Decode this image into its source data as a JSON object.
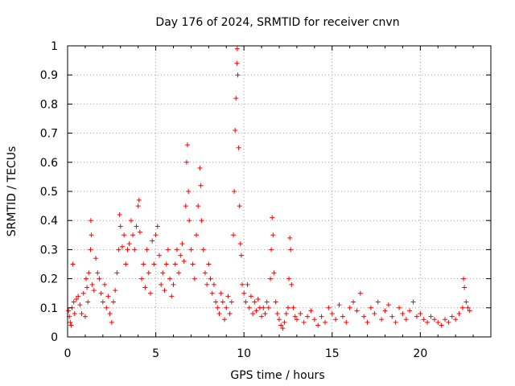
{
  "chart_data": {
    "type": "scatter",
    "title": "Day 176 of 2024, SRMTID for receiver cnvn",
    "xlabel": "GPS time / hours",
    "ylabel": "SRMTID / TECUs",
    "xlim": [
      0,
      24
    ],
    "ylim": [
      0,
      1
    ],
    "xticks": [
      0,
      5,
      10,
      15,
      20
    ],
    "xtick_labels": [
      "0",
      "5",
      "10",
      "15",
      "20"
    ],
    "yticks": [
      0,
      0.1,
      0.2,
      0.3,
      0.4,
      0.5,
      0.6,
      0.7,
      0.8,
      0.9,
      1
    ],
    "ytick_labels": [
      "0",
      "0.1",
      "0.2",
      "0.3",
      "0.4",
      "0.5",
      "0.6",
      "0.7",
      "0.8",
      "0.9",
      "1"
    ],
    "grid": true,
    "marker": "+",
    "series": [
      {
        "name": "SRMTID",
        "color": "#ff0000",
        "points": [
          [
            0.05,
            0.09
          ],
          [
            0.1,
            0.07
          ],
          [
            0.15,
            0.05
          ],
          [
            0.2,
            0.04
          ],
          [
            0.25,
            0.1
          ],
          [
            0.3,
            0.25
          ],
          [
            0.35,
            0.12
          ],
          [
            0.4,
            0.08
          ],
          [
            0.5,
            0.13
          ],
          [
            0.6,
            0.14
          ],
          [
            0.7,
            0.11
          ],
          [
            0.8,
            0.08
          ],
          [
            0.9,
            0.15
          ],
          [
            1.0,
            0.07
          ],
          [
            1.05,
            0.2
          ],
          [
            1.1,
            0.17
          ],
          [
            1.15,
            0.12
          ],
          [
            1.2,
            0.22
          ],
          [
            1.3,
            0.3
          ],
          [
            1.32,
            0.4
          ],
          [
            1.35,
            0.35
          ],
          [
            1.4,
            0.18
          ],
          [
            1.5,
            0.16
          ],
          [
            1.6,
            0.27
          ],
          [
            1.7,
            0.22
          ],
          [
            1.8,
            0.2
          ],
          [
            1.9,
            0.15
          ],
          [
            2.0,
            0.12
          ],
          [
            2.1,
            0.18
          ],
          [
            2.2,
            0.1
          ],
          [
            2.3,
            0.14
          ],
          [
            2.4,
            0.08
          ],
          [
            2.5,
            0.05
          ],
          [
            2.6,
            0.12
          ],
          [
            2.7,
            0.16
          ],
          [
            2.8,
            0.22
          ],
          [
            2.9,
            0.3
          ],
          [
            2.95,
            0.42
          ],
          [
            3.0,
            0.38
          ],
          [
            3.1,
            0.31
          ],
          [
            3.2,
            0.35
          ],
          [
            3.3,
            0.25
          ],
          [
            3.4,
            0.3
          ],
          [
            3.5,
            0.32
          ],
          [
            3.6,
            0.4
          ],
          [
            3.7,
            0.35
          ],
          [
            3.8,
            0.3
          ],
          [
            3.9,
            0.38
          ],
          [
            4.0,
            0.45
          ],
          [
            4.05,
            0.47
          ],
          [
            4.1,
            0.36
          ],
          [
            4.2,
            0.2
          ],
          [
            4.3,
            0.25
          ],
          [
            4.4,
            0.17
          ],
          [
            4.5,
            0.3
          ],
          [
            4.6,
            0.22
          ],
          [
            4.7,
            0.15
          ],
          [
            4.8,
            0.33
          ],
          [
            4.9,
            0.25
          ],
          [
            5.0,
            0.35
          ],
          [
            5.1,
            0.38
          ],
          [
            5.2,
            0.28
          ],
          [
            5.3,
            0.18
          ],
          [
            5.4,
            0.22
          ],
          [
            5.5,
            0.16
          ],
          [
            5.6,
            0.25
          ],
          [
            5.7,
            0.3
          ],
          [
            5.8,
            0.2
          ],
          [
            5.9,
            0.14
          ],
          [
            6.0,
            0.18
          ],
          [
            6.1,
            0.25
          ],
          [
            6.2,
            0.3
          ],
          [
            6.3,
            0.22
          ],
          [
            6.4,
            0.28
          ],
          [
            6.5,
            0.32
          ],
          [
            6.6,
            0.26
          ],
          [
            6.7,
            0.45
          ],
          [
            6.75,
            0.6
          ],
          [
            6.8,
            0.66
          ],
          [
            6.85,
            0.5
          ],
          [
            6.9,
            0.4
          ],
          [
            7.0,
            0.3
          ],
          [
            7.1,
            0.25
          ],
          [
            7.2,
            0.2
          ],
          [
            7.3,
            0.35
          ],
          [
            7.4,
            0.45
          ],
          [
            7.5,
            0.58
          ],
          [
            7.55,
            0.52
          ],
          [
            7.6,
            0.4
          ],
          [
            7.7,
            0.3
          ],
          [
            7.8,
            0.22
          ],
          [
            7.9,
            0.18
          ],
          [
            8.0,
            0.25
          ],
          [
            8.1,
            0.2
          ],
          [
            8.2,
            0.15
          ],
          [
            8.3,
            0.18
          ],
          [
            8.4,
            0.12
          ],
          [
            8.5,
            0.1
          ],
          [
            8.6,
            0.08
          ],
          [
            8.7,
            0.15
          ],
          [
            8.8,
            0.12
          ],
          [
            8.9,
            0.06
          ],
          [
            9.0,
            0.1
          ],
          [
            9.1,
            0.14
          ],
          [
            9.2,
            0.08
          ],
          [
            9.3,
            0.12
          ],
          [
            9.4,
            0.35
          ],
          [
            9.45,
            0.5
          ],
          [
            9.5,
            0.71
          ],
          [
            9.55,
            0.82
          ],
          [
            9.6,
            0.94
          ],
          [
            9.62,
            0.99
          ],
          [
            9.65,
            0.9
          ],
          [
            9.7,
            0.65
          ],
          [
            9.75,
            0.45
          ],
          [
            9.8,
            0.32
          ],
          [
            9.85,
            0.28
          ],
          [
            9.9,
            0.18
          ],
          [
            10.0,
            0.15
          ],
          [
            10.1,
            0.12
          ],
          [
            10.2,
            0.18
          ],
          [
            10.3,
            0.1
          ],
          [
            10.4,
            0.14
          ],
          [
            10.5,
            0.08
          ],
          [
            10.6,
            0.12
          ],
          [
            10.7,
            0.09
          ],
          [
            10.8,
            0.13
          ],
          [
            10.9,
            0.1
          ],
          [
            11.0,
            0.07
          ],
          [
            11.1,
            0.1
          ],
          [
            11.2,
            0.08
          ],
          [
            11.3,
            0.12
          ],
          [
            11.4,
            0.1
          ],
          [
            11.5,
            0.2
          ],
          [
            11.55,
            0.3
          ],
          [
            11.6,
            0.41
          ],
          [
            11.65,
            0.35
          ],
          [
            11.7,
            0.22
          ],
          [
            11.8,
            0.12
          ],
          [
            11.9,
            0.08
          ],
          [
            12.0,
            0.06
          ],
          [
            12.1,
            0.04
          ],
          [
            12.2,
            0.03
          ],
          [
            12.3,
            0.05
          ],
          [
            12.4,
            0.08
          ],
          [
            12.5,
            0.1
          ],
          [
            12.55,
            0.2
          ],
          [
            12.6,
            0.34
          ],
          [
            12.65,
            0.3
          ],
          [
            12.7,
            0.18
          ],
          [
            12.8,
            0.1
          ],
          [
            12.9,
            0.07
          ],
          [
            13.0,
            0.06
          ],
          [
            13.2,
            0.08
          ],
          [
            13.4,
            0.05
          ],
          [
            13.6,
            0.07
          ],
          [
            13.8,
            0.09
          ],
          [
            14.0,
            0.06
          ],
          [
            14.2,
            0.04
          ],
          [
            14.4,
            0.07
          ],
          [
            14.6,
            0.05
          ],
          [
            14.8,
            0.1
          ],
          [
            15.0,
            0.08
          ],
          [
            15.2,
            0.06
          ],
          [
            15.4,
            0.11
          ],
          [
            15.6,
            0.07
          ],
          [
            15.8,
            0.05
          ],
          [
            16.0,
            0.1
          ],
          [
            16.2,
            0.12
          ],
          [
            16.4,
            0.09
          ],
          [
            16.6,
            0.15
          ],
          [
            16.8,
            0.07
          ],
          [
            17.0,
            0.05
          ],
          [
            17.2,
            0.1
          ],
          [
            17.4,
            0.08
          ],
          [
            17.6,
            0.12
          ],
          [
            17.8,
            0.06
          ],
          [
            18.0,
            0.09
          ],
          [
            18.2,
            0.11
          ],
          [
            18.4,
            0.07
          ],
          [
            18.6,
            0.05
          ],
          [
            18.8,
            0.1
          ],
          [
            19.0,
            0.08
          ],
          [
            19.2,
            0.06
          ],
          [
            19.4,
            0.09
          ],
          [
            19.6,
            0.12
          ],
          [
            19.8,
            0.07
          ],
          [
            20.0,
            0.08
          ],
          [
            20.2,
            0.06
          ],
          [
            20.4,
            0.05
          ],
          [
            20.6,
            0.07
          ],
          [
            20.8,
            0.06
          ],
          [
            21.0,
            0.05
          ],
          [
            21.2,
            0.04
          ],
          [
            21.4,
            0.06
          ],
          [
            21.6,
            0.05
          ],
          [
            21.8,
            0.07
          ],
          [
            22.0,
            0.06
          ],
          [
            22.2,
            0.08
          ],
          [
            22.4,
            0.1
          ],
          [
            22.45,
            0.2
          ],
          [
            22.5,
            0.17
          ],
          [
            22.6,
            0.12
          ],
          [
            22.7,
            0.1
          ],
          [
            22.8,
            0.09
          ]
        ]
      }
    ]
  }
}
